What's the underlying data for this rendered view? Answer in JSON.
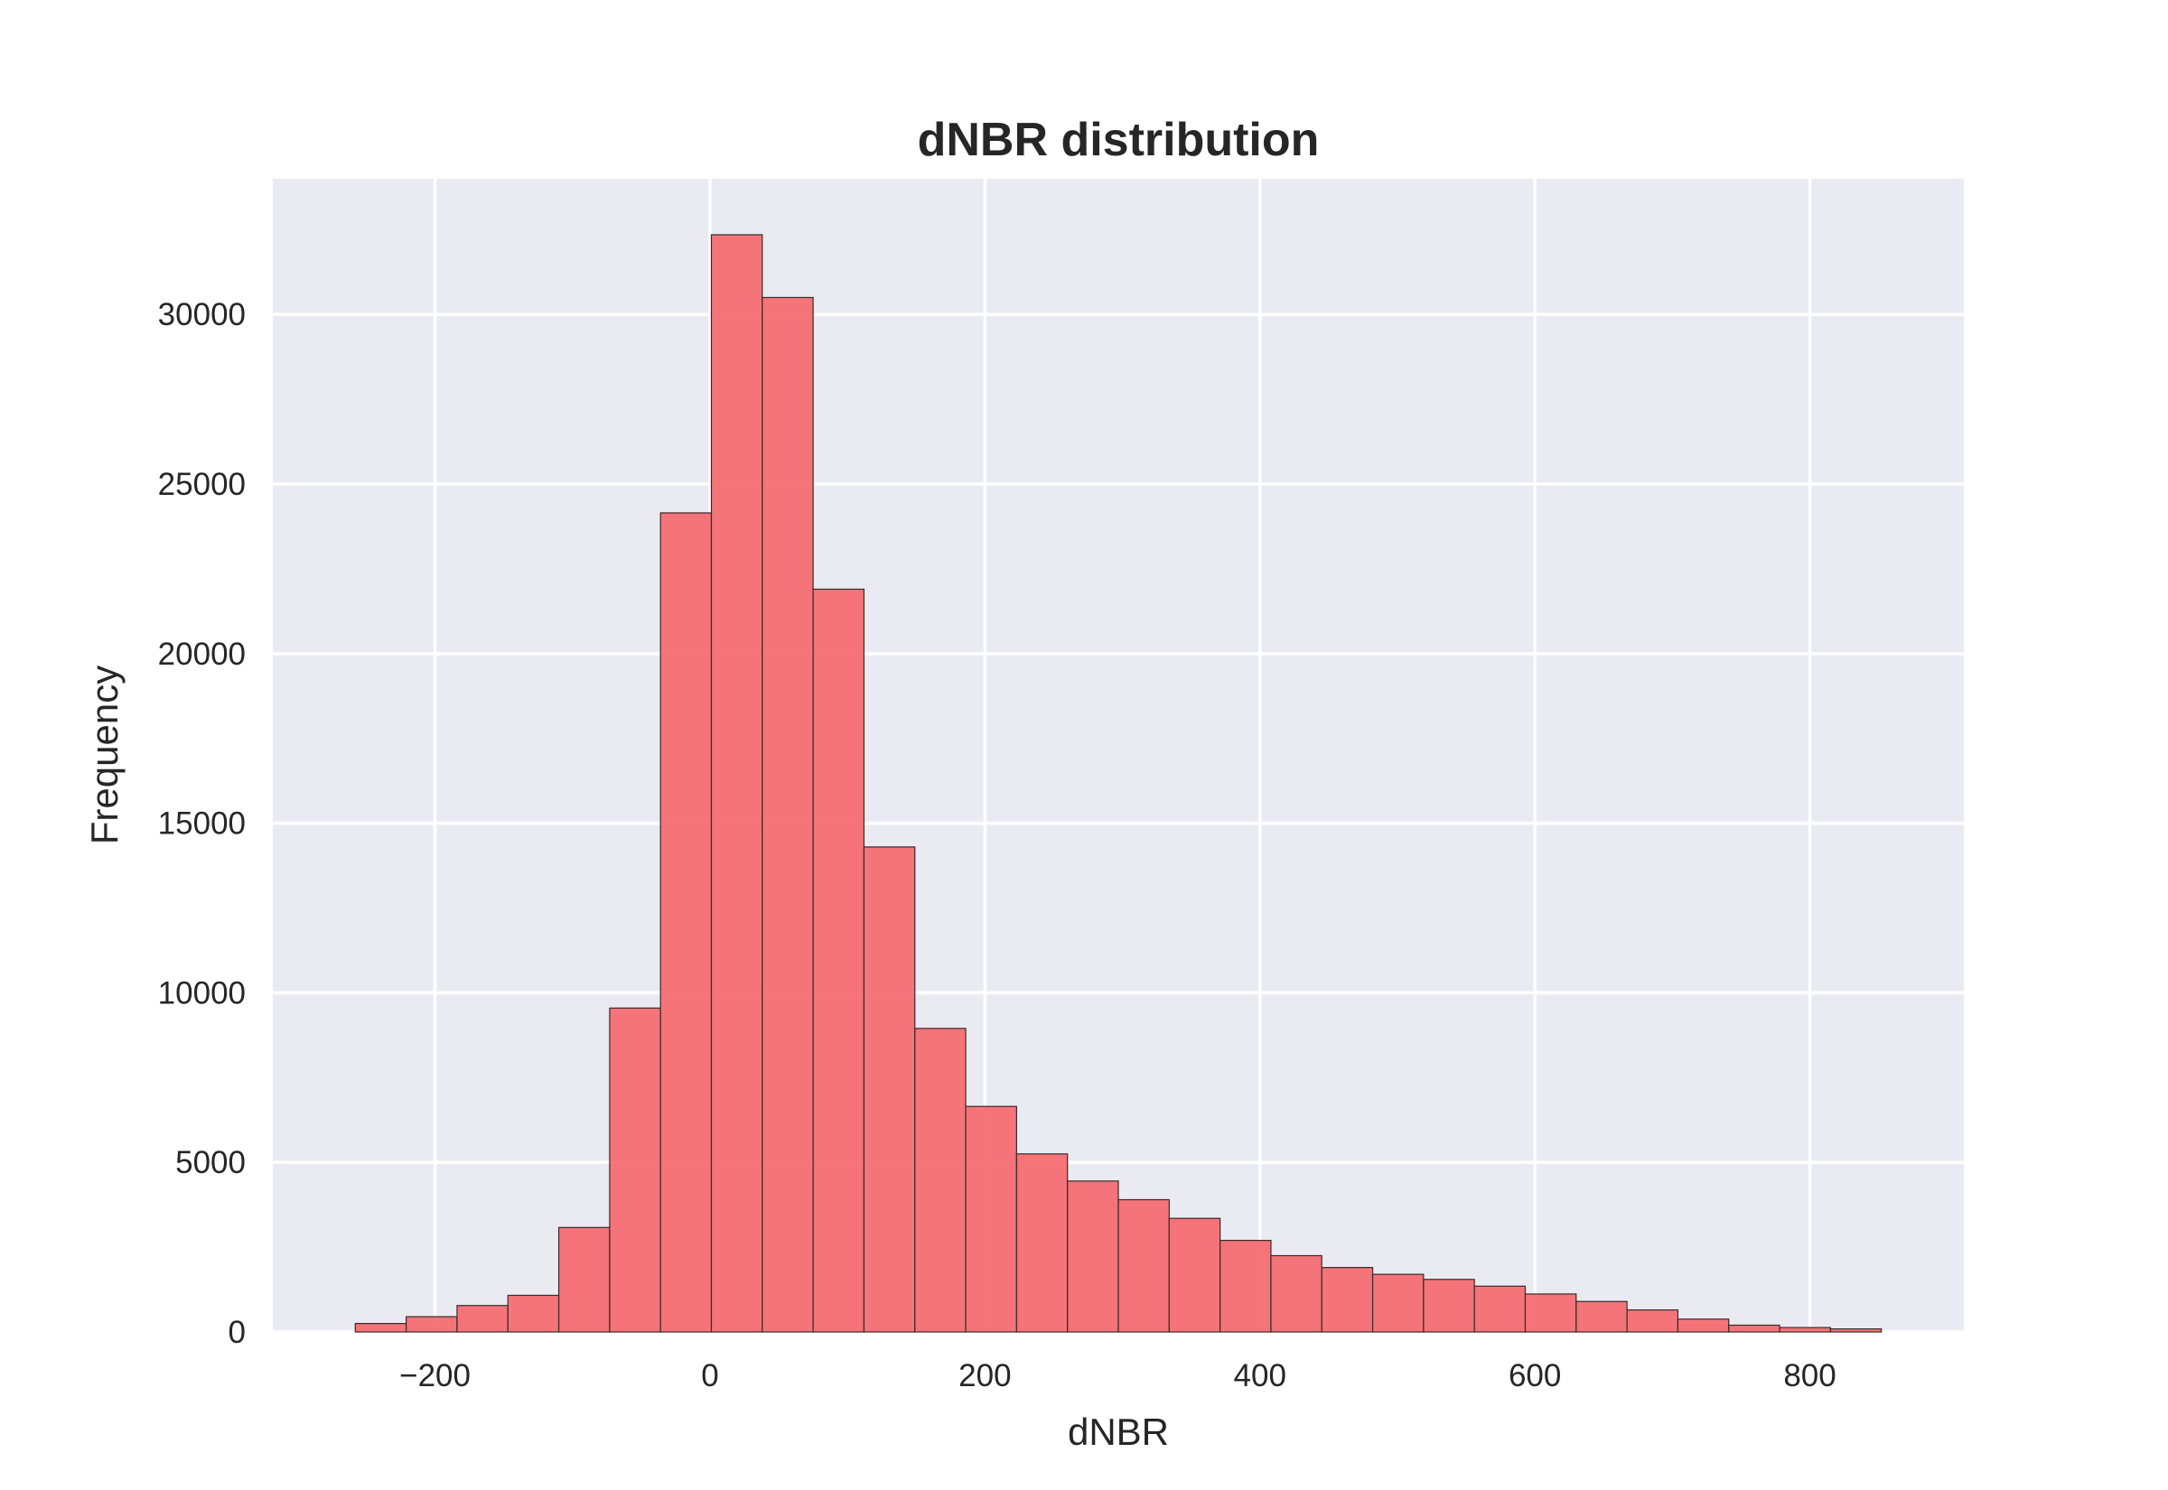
{
  "chart_data": {
    "type": "bar",
    "title": "dNBR distribution",
    "xlabel": "dNBR",
    "ylabel": "Frequency",
    "xlim": [
      -318,
      912
    ],
    "ylim": [
      0,
      34000
    ],
    "xticks": [
      -200,
      0,
      200,
      400,
      600,
      800
    ],
    "xtick_labels": [
      "−200",
      "0",
      "200",
      "400",
      "600",
      "800"
    ],
    "yticks": [
      0,
      5000,
      10000,
      15000,
      20000,
      25000,
      30000
    ],
    "ytick_labels": [
      "0",
      "5000",
      "10000",
      "15000",
      "20000",
      "25000",
      "30000"
    ],
    "grid": true,
    "bin_edges": [
      -258,
      -221,
      -184,
      -147,
      -110,
      -73,
      -36,
      1,
      38,
      75,
      112,
      149,
      186,
      223,
      260,
      297,
      334,
      371,
      408,
      445,
      482,
      519,
      556,
      593,
      630,
      667,
      704,
      741,
      778,
      815,
      852
    ],
    "values": [
      250,
      450,
      780,
      1080,
      3080,
      9550,
      24150,
      32350,
      30500,
      21900,
      14300,
      8950,
      6650,
      5250,
      4450,
      3900,
      3350,
      2700,
      2250,
      1900,
      1700,
      1550,
      1350,
      1120,
      900,
      650,
      380,
      200,
      130,
      90
    ],
    "colors": {
      "bar_fill": "#f4696f",
      "bar_edge": "#3a2a2a",
      "plot_background": "#eaeaf2",
      "grid": "#ffffff",
      "text": "#262626"
    }
  }
}
